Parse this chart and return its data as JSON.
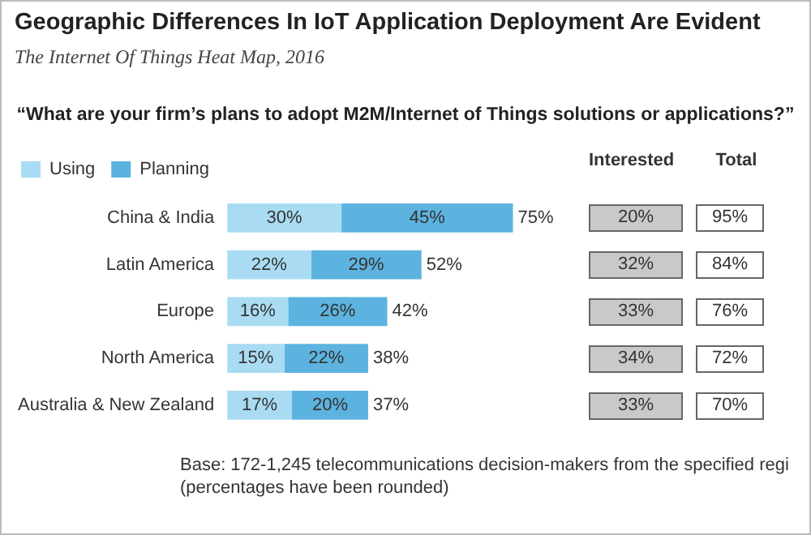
{
  "chart_data": [
    {
      "type": "bar",
      "title": "Geographic Differences In IoT Application Deployment Are Evident",
      "subtitle": "The Internet Of Things Heat Map, 2016",
      "annotations": [
        "“What are your firm’s plans to adopt M2M/Internet of Things solutions or applications?”",
        "Base: 172-1,245 telecommunications decision-makers from the specified regi",
        "(percentages have been rounded)"
      ],
      "orientation": "horizontal",
      "stacked": true,
      "legend": "top left",
      "grid": false,
      "categories": [
        "China & India",
        "Latin America",
        "Europe",
        "North America",
        "Australia & New Zealand"
      ],
      "series": [
        {
          "name": "Using",
          "color": "#a9dcf3",
          "values": [
            30,
            22,
            16,
            15,
            17
          ],
          "value_labels": [
            "30%",
            "22%",
            "16%",
            "15%",
            "17%"
          ]
        },
        {
          "name": "Planning",
          "color": "#5cb3df",
          "values": [
            45,
            29,
            26,
            22,
            20
          ],
          "value_labels": [
            "45%",
            "29%",
            "26%",
            "22%",
            "20%"
          ]
        }
      ],
      "totals": [
        "75%",
        "52%",
        "42%",
        "38%",
        "37%"
      ]
    },
    {
      "type": "other",
      "annotations": [
        "Interested",
        "20%",
        "32%",
        "33%",
        "34%",
        "33%",
        "Total",
        "95%",
        "84%",
        "76%",
        "72%",
        "70%"
      ]
    }
  ]
}
